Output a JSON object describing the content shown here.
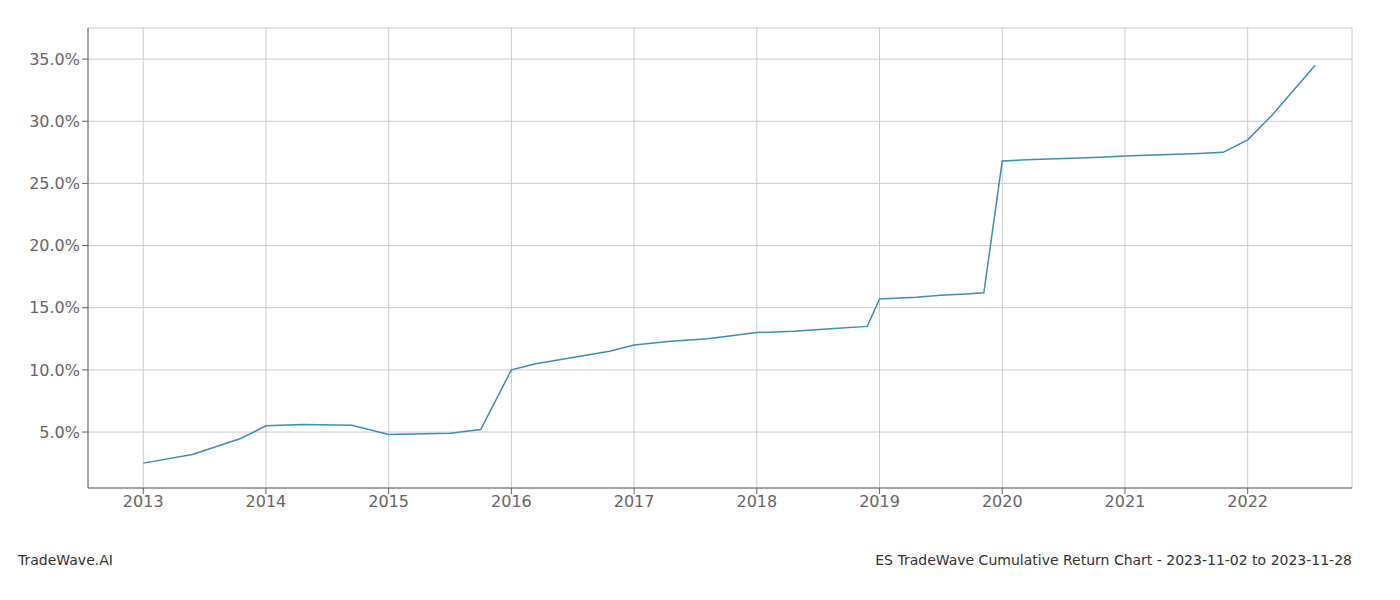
{
  "chart_data": {
    "type": "line",
    "title": "ES TradeWave Cumulative Return Chart - 2023-11-02 to 2023-11-28",
    "annotations": [
      "TradeWave.AI"
    ],
    "x": [
      2013.0,
      2013.4,
      2013.8,
      2014.0,
      2014.3,
      2014.7,
      2015.0,
      2015.2,
      2015.5,
      2015.75,
      2016.0,
      2016.2,
      2016.5,
      2016.8,
      2017.0,
      2017.3,
      2017.6,
      2018.0,
      2018.3,
      2018.6,
      2018.9,
      2019.0,
      2019.3,
      2019.5,
      2019.7,
      2019.85,
      2020.0,
      2020.2,
      2020.5,
      2020.8,
      2021.0,
      2021.3,
      2021.6,
      2021.8,
      2022.0,
      2022.2,
      2022.55
    ],
    "values": [
      2.5,
      3.2,
      4.5,
      5.5,
      5.6,
      5.55,
      4.8,
      4.85,
      4.9,
      5.2,
      10.0,
      10.5,
      11.0,
      11.5,
      12.0,
      12.3,
      12.5,
      13.0,
      13.1,
      13.3,
      13.5,
      15.7,
      15.85,
      16.0,
      16.1,
      16.2,
      26.8,
      26.9,
      27.0,
      27.1,
      27.2,
      27.3,
      27.4,
      27.5,
      28.5,
      30.5,
      34.5
    ],
    "color": "#3a8fb5",
    "xlim": [
      2012.55,
      2022.85
    ],
    "xticks": [
      2013,
      2014,
      2015,
      2016,
      2017,
      2018,
      2019,
      2020,
      2021,
      2022
    ],
    "ylim": [
      0.5,
      37.5
    ],
    "yticks": [
      {
        "value": 5.0,
        "label": "5.0%"
      },
      {
        "value": 10.0,
        "label": "10.0%"
      },
      {
        "value": 15.0,
        "label": "15.0%"
      },
      {
        "value": 20.0,
        "label": "20.0%"
      },
      {
        "value": 25.0,
        "label": "25.0%"
      },
      {
        "value": 30.0,
        "label": "30.0%"
      },
      {
        "value": 35.0,
        "label": "35.0%"
      }
    ],
    "grid": true
  }
}
